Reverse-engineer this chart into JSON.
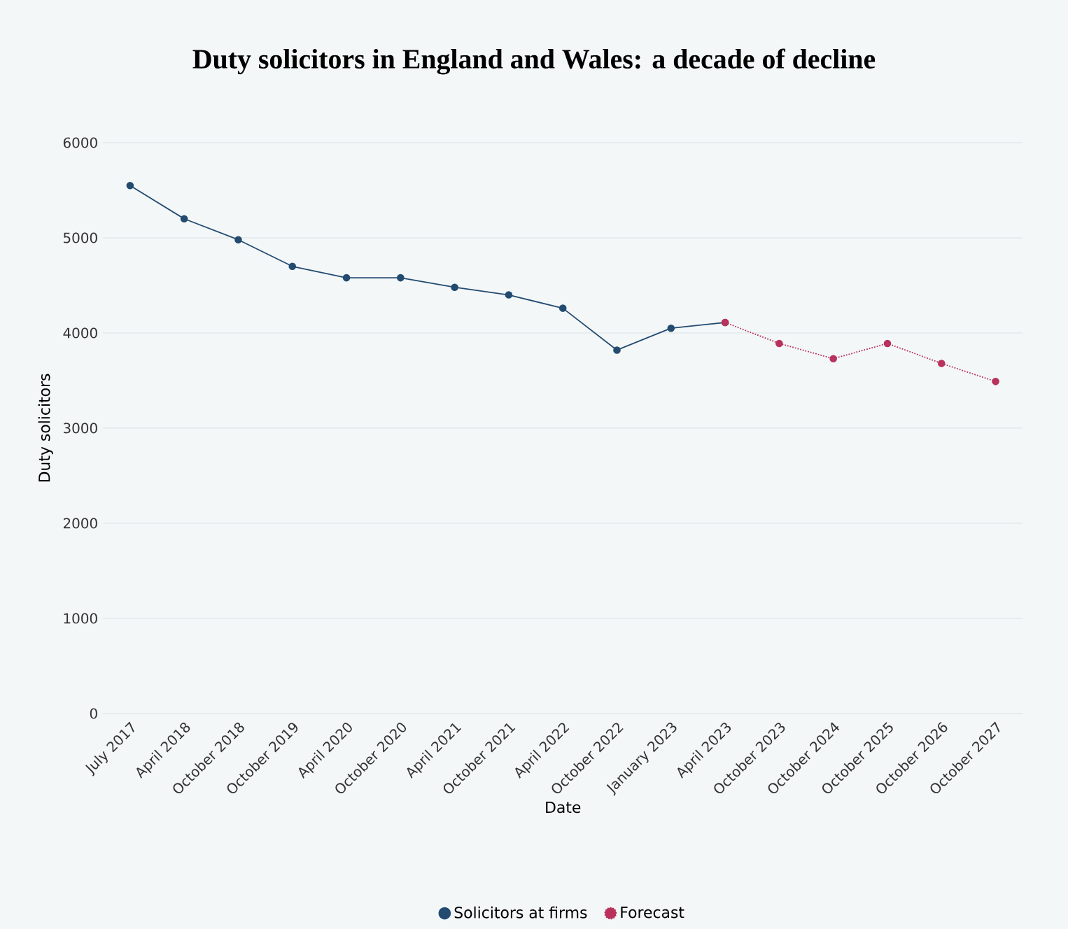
{
  "chart_data": {
    "type": "line",
    "title": "Duty solicitors in England and Wales: a decade of decline",
    "xlabel": "Date",
    "ylabel": "Duty solicitors",
    "categories": [
      "July 2017",
      "April 2018",
      "October 2018",
      "October 2019",
      "April 2020",
      "October 2020",
      "April 2021",
      "October 2021",
      "April 2022",
      "October 2022",
      "January 2023",
      "April 2023",
      "October 2023",
      "October 2024",
      "October 2025",
      "October 2026",
      "October 2027"
    ],
    "series": [
      {
        "name": "Solicitors at firms",
        "color": "#234b70",
        "line_style": "solid",
        "values": [
          5550,
          5200,
          4980,
          4700,
          4580,
          4580,
          4480,
          4400,
          4260,
          3820,
          4050,
          4110,
          null,
          null,
          null,
          null,
          null
        ]
      },
      {
        "name": "Forecast",
        "color": "#b8325c",
        "line_style": "dotted",
        "values": [
          null,
          null,
          null,
          null,
          null,
          null,
          null,
          null,
          null,
          null,
          null,
          4110,
          3890,
          3730,
          3890,
          3680,
          3490
        ]
      }
    ],
    "ylim": [
      0,
      6000
    ],
    "yticks": [
      0,
      1000,
      2000,
      3000,
      4000,
      5000,
      6000
    ],
    "grid": "y",
    "legend": "bottom",
    "marker": "circle"
  }
}
